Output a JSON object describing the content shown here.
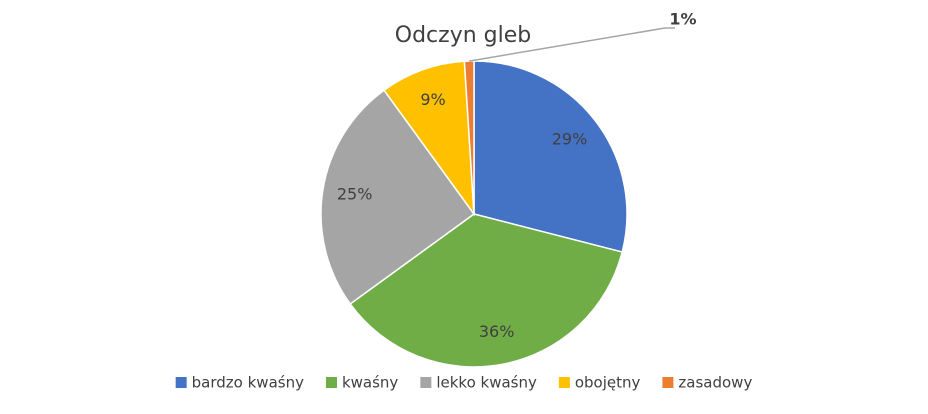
{
  "chart_data": {
    "type": "pie",
    "title": "Odczyn gleb",
    "categories": [
      "bardzo kwaśny",
      "kwaśny",
      "lekko kwaśny",
      "obojętny",
      "zasadowy"
    ],
    "values": [
      29,
      36,
      25,
      9,
      1
    ],
    "value_labels": [
      "29%",
      "36%",
      "25%",
      "9%",
      "1%"
    ],
    "colors": [
      "#4472c4",
      "#70ad47",
      "#a5a5a5",
      "#ffc000",
      "#ed7d31"
    ],
    "legend": "bottom"
  }
}
